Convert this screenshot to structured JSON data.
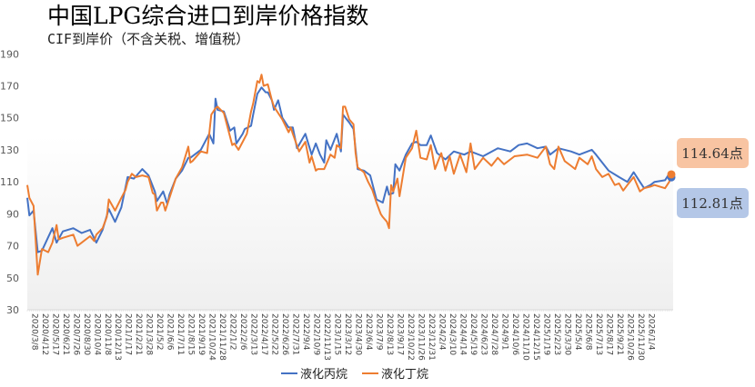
{
  "chart_data": {
    "type": "line",
    "title": "中国LPG综合进口到岸价格指数",
    "subtitle": "CIF到岸价（不含关税、增值税）",
    "xlabel": "",
    "ylabel": "",
    "ylim": [
      30,
      190
    ],
    "yticks": [
      30,
      50,
      70,
      90,
      110,
      130,
      150,
      170,
      190
    ],
    "xlim_week_index": [
      0,
      308
    ],
    "x_tick_labels": [
      "2020/3/8",
      "2020/4/12",
      "2020/5/17",
      "2020/6/21",
      "2020/7/26",
      "2020/8/30",
      "2020/10/4",
      "2020/11/8",
      "2020/12/13",
      "2021/1/17",
      "2021/2/21",
      "2021/3/28",
      "2021/5/2",
      "2021/6/6",
      "2021/7/11",
      "2021/8/15",
      "2021/9/19",
      "2021/10/24",
      "2021/11/28",
      "2022/1/2",
      "2022/2/6",
      "2022/3/13",
      "2022/4/17",
      "2022/5/22",
      "2022/6/26",
      "2022/7/31",
      "2022/9/4",
      "2022/10/9",
      "2022/11/13",
      "2023/1/15",
      "2023/3/12",
      "2023/4/30",
      "2023/6/4",
      "2023/7/9",
      "2023/8/13",
      "2023/9/17",
      "2023/10/22",
      "2023/11/26",
      "2023/12/31",
      "2024/2/4",
      "2024/3/10",
      "2024/4/14",
      "2024/5/19",
      "2024/6/23",
      "2024/7/28",
      "2024/9/1",
      "2024/10/6",
      "2024/11/10",
      "2024/12/15",
      "2025/1/19",
      "2025/2/23",
      "2025/3/30",
      "2025/5/4",
      "2025/6/8",
      "2025/7/13",
      "2025/8/17",
      "2025/9/21",
      "2025/10/26",
      "2025/11/30",
      "2026/1/4"
    ],
    "grid": false,
    "legend_position": "bottom",
    "series": [
      {
        "name": "液化丙烷",
        "color": "#4472c4",
        "callout_color": "#b4c7e7",
        "last_label": "112.81点",
        "last_value": 112.81,
        "x": [
          0,
          1,
          3,
          5,
          7,
          12,
          14,
          17,
          22,
          26,
          30,
          33,
          36,
          39,
          42,
          45,
          48,
          51,
          55,
          58,
          61,
          62,
          65,
          67,
          68,
          71,
          74,
          77,
          78,
          83,
          87,
          89,
          90,
          91,
          94,
          97,
          99,
          100,
          103,
          104,
          107,
          108,
          110,
          112,
          114,
          115,
          117,
          118,
          120,
          122,
          125,
          127,
          129,
          133,
          136,
          138,
          140,
          142,
          143,
          145,
          148,
          150,
          151,
          154,
          156,
          158,
          161,
          164,
          167,
          170,
          172,
          173,
          175,
          176,
          178,
          181,
          184,
          186,
          188,
          191,
          193,
          196,
          200,
          204,
          209,
          212,
          218,
          225,
          231,
          235,
          239,
          244,
          248,
          250,
          254,
          260,
          264,
          270,
          272,
          275,
          278,
          283,
          287,
          290,
          293,
          295,
          298,
          300,
          305,
          307,
          308
        ],
        "y": [
          100,
          89,
          92,
          66,
          67,
          81,
          72,
          79,
          81,
          78,
          80,
          72,
          80,
          93,
          85,
          94,
          113,
          112,
          118,
          114,
          104,
          98,
          104,
          96,
          102,
          112,
          117,
          125,
          125,
          130,
          140,
          134,
          162,
          155,
          154,
          142,
          144,
          134,
          140,
          143,
          145,
          152,
          165,
          169,
          166,
          166,
          161,
          155,
          161,
          150,
          144,
          144,
          131,
          140,
          127,
          134,
          127,
          122,
          136,
          130,
          140,
          129,
          152,
          147,
          143,
          118,
          117,
          114,
          99,
          97,
          107,
          102,
          103,
          121,
          117,
          127,
          134,
          135,
          133,
          133,
          139,
          128,
          124,
          129,
          127,
          129,
          126,
          131,
          129,
          133,
          134,
          131,
          132,
          127,
          131,
          129,
          127,
          130,
          127,
          122,
          117,
          113,
          110,
          116,
          110,
          106,
          108,
          110,
          111,
          115,
          112.81
        ]
      },
      {
        "name": "液化丁烷",
        "color": "#ed7d31",
        "callout_color": "#f8c4a2",
        "last_label": "114.64点",
        "last_value": 114.64,
        "x": [
          0,
          1,
          3,
          5,
          7,
          10,
          12,
          14,
          15,
          17,
          22,
          24,
          26,
          30,
          32,
          33,
          36,
          38,
          39,
          42,
          45,
          47,
          48,
          50,
          52,
          55,
          58,
          60,
          61,
          62,
          64,
          65,
          66,
          68,
          71,
          74,
          77,
          78,
          79,
          83,
          86,
          88,
          90,
          91,
          94,
          97,
          98,
          99,
          101,
          103,
          105,
          107,
          108,
          110,
          111,
          112,
          113,
          115,
          117,
          118,
          122,
          125,
          126,
          127,
          130,
          133,
          135,
          136,
          138,
          139,
          141,
          142,
          145,
          147,
          148,
          150,
          151,
          152,
          154,
          156,
          157,
          158,
          161,
          163,
          165,
          167,
          169,
          170,
          172,
          173,
          174,
          175,
          177,
          178,
          181,
          184,
          186,
          188,
          191,
          193,
          195,
          198,
          200,
          202,
          204,
          207,
          210,
          212,
          214,
          218,
          222,
          225,
          228,
          233,
          239,
          244,
          248,
          250,
          252,
          254,
          257,
          260,
          262,
          264,
          268,
          270,
          272,
          275,
          278,
          281,
          283,
          285,
          287,
          290,
          293,
          295,
          298,
          300,
          305,
          307,
          308
        ],
        "y": [
          108,
          100,
          95,
          52,
          68,
          66,
          72,
          83,
          74,
          75,
          77,
          70,
          72,
          76,
          73,
          77,
          81,
          88,
          99,
          92,
          100,
          105,
          110,
          115,
          113,
          114,
          113,
          103,
          102,
          92,
          97,
          97,
          92,
          100,
          112,
          119,
          132,
          122,
          123,
          129,
          128,
          152,
          156,
          157,
          153,
          138,
          133,
          134,
          130,
          135,
          140,
          154,
          159,
          173,
          172,
          177,
          170,
          171,
          161,
          157,
          149,
          141,
          144,
          140,
          129,
          135,
          122,
          126,
          117,
          118,
          118,
          118,
          127,
          125,
          133,
          131,
          157,
          157,
          149,
          146,
          128,
          119,
          116,
          110,
          105,
          97,
          90,
          88,
          85,
          81,
          108,
          104,
          112,
          101,
          125,
          131,
          142,
          125,
          124,
          133,
          118,
          128,
          117,
          126,
          115,
          127,
          116,
          134,
          118,
          125,
          120,
          125,
          121,
          126,
          127,
          125,
          132,
          121,
          118,
          132,
          123,
          120,
          118,
          125,
          121,
          126,
          118,
          113,
          115,
          108,
          109,
          104.5,
          108,
          113,
          104,
          106,
          107,
          108,
          106,
          110,
          114.64
        ]
      }
    ]
  }
}
